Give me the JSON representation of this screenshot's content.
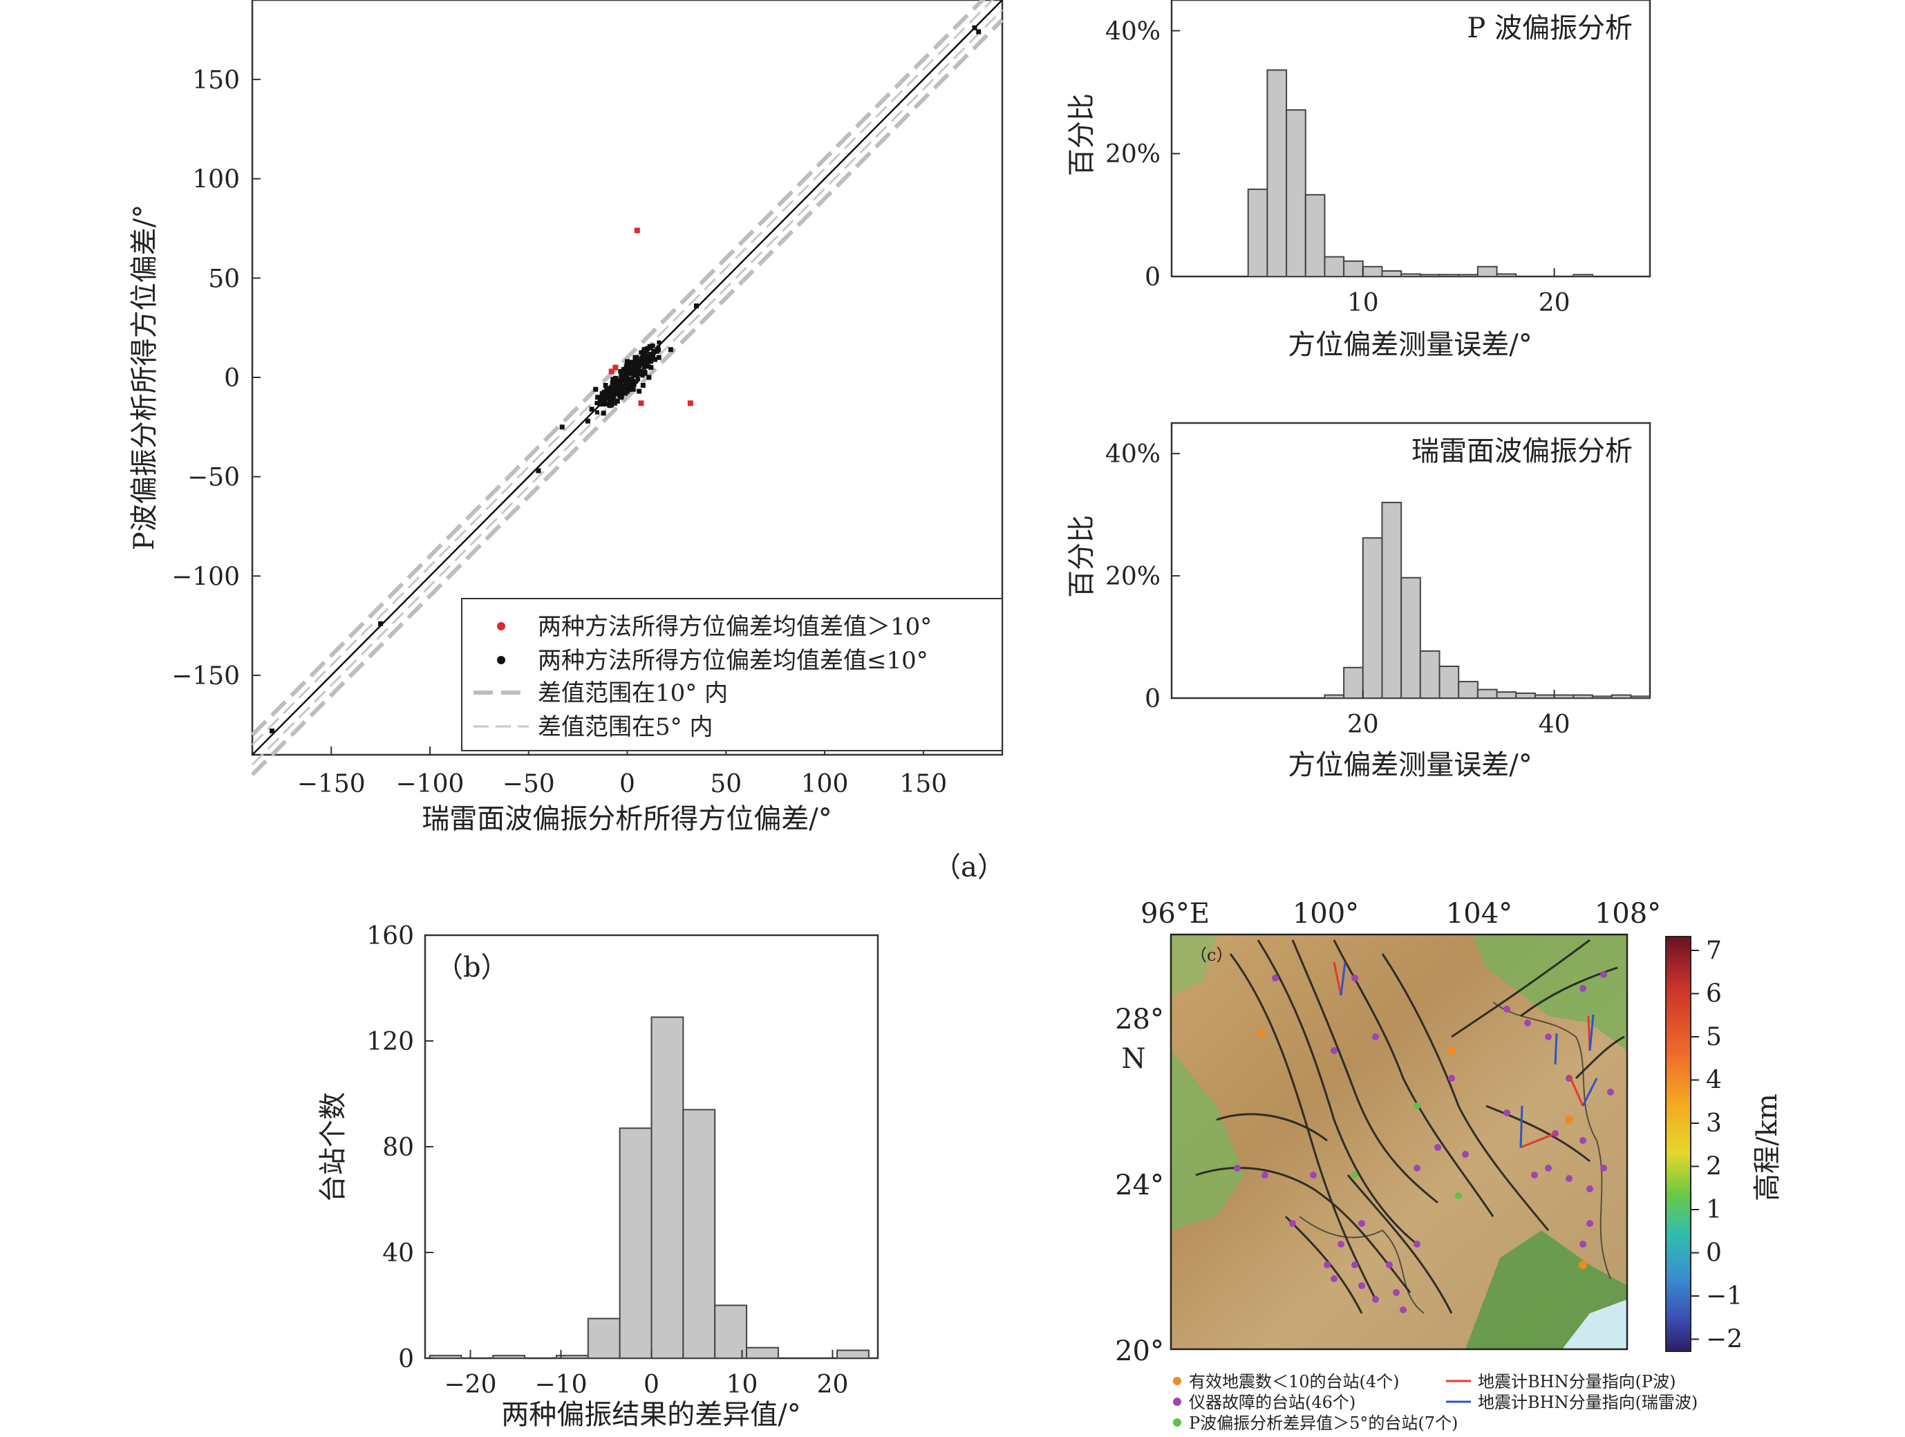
{
  "chart_data": [
    {
      "id": "scatter",
      "type": "scatter",
      "xlabel": "瑞雷面波偏振分析所得方位偏差/°",
      "ylabel": "P波偏振分析所得方位偏差/°",
      "xlim": [
        -190,
        190
      ],
      "ylim": [
        -190,
        190
      ],
      "xticks": [
        -150,
        -100,
        -50,
        0,
        50,
        100,
        150
      ],
      "xtick_labels": [
        "−150",
        "−100",
        "−50",
        "0",
        "50",
        "100",
        "150"
      ],
      "yticks": [
        -150,
        -100,
        -50,
        0,
        50,
        100,
        150
      ],
      "ytick_labels": [
        "−150",
        "−100",
        "−50",
        "0",
        "50",
        "100",
        "150"
      ],
      "legend": [
        "两种方法所得方位偏差均值差值＞10°",
        "两种方法所得方位偏差均值差值≤10°",
        "差值范围在10° 内",
        "差值范围在5° 内"
      ],
      "legend_position": "bottom-right",
      "red_points": [
        [
          5,
          74
        ],
        [
          7,
          -13
        ],
        [
          32,
          -13
        ],
        [
          -8,
          3
        ],
        [
          -6,
          5
        ]
      ],
      "black_points": [
        [
          -180,
          -178
        ],
        [
          -125,
          -124
        ],
        [
          -45,
          -47
        ],
        [
          -33,
          -25
        ],
        [
          35,
          36
        ],
        [
          22,
          14
        ],
        [
          176,
          176
        ],
        [
          178,
          174
        ],
        [
          -20,
          -22
        ],
        [
          -18,
          -16
        ],
        [
          -15,
          -10
        ],
        [
          -12,
          -18
        ],
        [
          -10,
          -8
        ],
        [
          -8,
          -5
        ],
        [
          -6,
          -2
        ],
        [
          -5,
          -12
        ],
        [
          -4,
          -3
        ],
        [
          -3,
          2
        ],
        [
          -2,
          -6
        ],
        [
          -1,
          0
        ],
        [
          0,
          -3
        ],
        [
          1,
          2
        ],
        [
          2,
          -1
        ],
        [
          3,
          4
        ],
        [
          4,
          -2
        ],
        [
          5,
          1
        ],
        [
          6,
          6
        ],
        [
          7,
          3
        ],
        [
          8,
          -4
        ],
        [
          9,
          2
        ],
        [
          10,
          7
        ],
        [
          12,
          5
        ],
        [
          14,
          9
        ],
        [
          16,
          10
        ],
        [
          -14,
          -13
        ],
        [
          -11,
          -4
        ],
        [
          -7,
          -9
        ],
        [
          -9,
          -14
        ],
        [
          0,
          8
        ],
        [
          2,
          5
        ],
        [
          -3,
          -10
        ],
        [
          6,
          -7
        ],
        [
          11,
          0
        ],
        [
          -16,
          -6
        ],
        [
          4,
          10
        ],
        [
          -1,
          -8
        ],
        [
          3,
          -6
        ]
      ]
    },
    {
      "id": "hist_p",
      "type": "bar",
      "title": "P 波偏振分析",
      "xlabel": "方位偏差测量误差/°",
      "ylabel": "百分比",
      "xlim": [
        0,
        25
      ],
      "ylim": [
        0,
        45
      ],
      "xticks": [
        10,
        20
      ],
      "xtick_labels": [
        "10",
        "20"
      ],
      "yticks": [
        0,
        20,
        40
      ],
      "ytick_labels": [
        "0",
        "20%",
        "40%"
      ],
      "bin_width": 1,
      "bins_start": [
        4,
        5,
        6,
        7,
        8,
        9,
        10,
        11,
        12,
        13,
        14,
        15,
        16,
        17,
        18,
        19,
        20,
        21,
        22,
        23
      ],
      "values": [
        14.2,
        33.6,
        27.1,
        13.3,
        3.2,
        2.5,
        1.6,
        0.9,
        0.4,
        0.3,
        0.3,
        0.3,
        1.6,
        0.4,
        0,
        0,
        0,
        0.3,
        0,
        0
      ]
    },
    {
      "id": "hist_r",
      "type": "bar",
      "title": "瑞雷面波偏振分析",
      "xlabel": "方位偏差测量误差/°",
      "ylabel": "百分比",
      "xlim": [
        0,
        50
      ],
      "ylim": [
        0,
        45
      ],
      "xticks": [
        20,
        40
      ],
      "xtick_labels": [
        "20",
        "40"
      ],
      "yticks": [
        0,
        20,
        40
      ],
      "ytick_labels": [
        "0",
        "20%",
        "40%"
      ],
      "bin_width": 2,
      "bins_start": [
        16,
        18,
        20,
        22,
        24,
        26,
        28,
        30,
        32,
        34,
        36,
        38,
        40,
        42,
        44,
        46,
        48
      ],
      "values": [
        0.5,
        5,
        26.2,
        32,
        19.7,
        7.7,
        5.2,
        2.7,
        1.4,
        1.0,
        0.8,
        0.5,
        0.5,
        0.5,
        0.3,
        0.5,
        0.3
      ]
    },
    {
      "id": "hist_b",
      "type": "bar",
      "xlabel": "两种偏振结果的差异值/°",
      "ylabel": "台站个数",
      "xlim": [
        -25,
        25
      ],
      "ylim": [
        0,
        160
      ],
      "xticks": [
        -20,
        -10,
        0,
        10,
        20
      ],
      "xtick_labels": [
        "−20",
        "−10",
        "0",
        "10",
        "20"
      ],
      "yticks": [
        0,
        40,
        80,
        120,
        160
      ],
      "ytick_labels": [
        "0",
        "40",
        "80",
        "120",
        "160"
      ],
      "bin_width": 3.5,
      "bins_start": [
        -24.5,
        -17.5,
        -10.5,
        -7,
        -3.5,
        0,
        3.5,
        7,
        10.5,
        20.5
      ],
      "values": [
        1,
        1,
        1,
        15,
        87,
        129,
        94,
        20,
        4,
        3
      ]
    }
  ],
  "labels": {
    "panel_a": "（a）",
    "panel_b": "（b）",
    "panel_c": "（c）"
  },
  "map": {
    "lon_ticks": [
      "96°E",
      "100°",
      "104°",
      "108°"
    ],
    "lat_ticks": [
      "28°",
      "24°",
      "20°"
    ],
    "north_label": "N",
    "colorbar_ticks": [
      "7",
      "6",
      "5",
      "4",
      "3",
      "2",
      "1",
      "0",
      "−1",
      "−2"
    ],
    "colorbar_label": "高程/km",
    "colorbar_colors": [
      "#7a1e2c",
      "#c9322b",
      "#ee6a2a",
      "#f5a623",
      "#e9d42a",
      "#8ccf3a",
      "#2fb9b0",
      "#3a8fd0",
      "#3b4fb6",
      "#3b2a7a"
    ],
    "legend": [
      {
        "label": "有效地震数＜10的台站(4个)",
        "color": "#f08a24"
      },
      {
        "label": "仪器故障的台站(46个)",
        "color": "#9b46b5"
      },
      {
        "label": "P波偏振分析差异值＞5°的台站(7个)",
        "color": "#5cc24a"
      },
      {
        "label": "地震计BHN分量指向(P波)",
        "color": "#e53a2d"
      },
      {
        "label": "地震计BHN分量指向(瑞雷波)",
        "color": "#2b55c8"
      }
    ]
  },
  "colors": {
    "bar_fill": "#c6c6c6",
    "bar_stroke": "#444444",
    "red": "#e0282a",
    "black": "#111111",
    "dash": "#bdbdbd"
  }
}
